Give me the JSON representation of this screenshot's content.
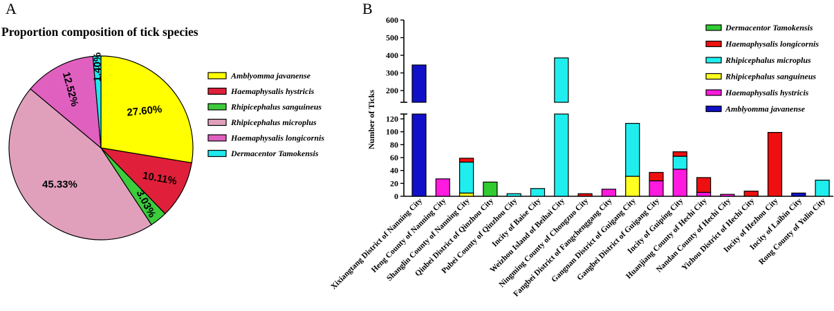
{
  "panels": {
    "a_letter": "A",
    "b_letter": "B"
  },
  "chart_data": [
    {
      "type": "pie",
      "title": "Proportion composition of tick species",
      "slices": [
        {
          "name": "Amblyomma javanense",
          "value": 27.6,
          "label": "27.60%",
          "color": "#ffff00"
        },
        {
          "name": "Haemaphysalis hystricis",
          "value": 10.11,
          "label": "10.11%",
          "color": "#e0203a"
        },
        {
          "name": "Rhipicephalus sanguineus",
          "value": 3.03,
          "label": "3.03%",
          "color": "#3ccc3c"
        },
        {
          "name": "Rhipicephalus microplus",
          "value": 45.33,
          "label": "45.33%",
          "color": "#e0a0bc"
        },
        {
          "name": "Haemaphysalis longicornis",
          "value": 12.52,
          "label": "12.52%",
          "color": "#e060c0"
        },
        {
          "name": "Dermacentor Tamokensis",
          "value": 1.4,
          "label": "1.40%",
          "color": "#20e8ee"
        }
      ]
    },
    {
      "type": "bar",
      "stacked": true,
      "broken_axis": true,
      "ylabel": "Number of Ticks",
      "lower_ticks": [
        0,
        20,
        40,
        60,
        80,
        100,
        120
      ],
      "upper_ticks": [
        200,
        300,
        400,
        500,
        600
      ],
      "ylim_lower": [
        0,
        125
      ],
      "ylim_upper": [
        150,
        600
      ],
      "categories": [
        "Xixiangtang District of Nanning City",
        "Heng County of Nanning City",
        "Shanglin County of Nanning City",
        "Qinbei District of Qinzhou City",
        "Pubei County of Qinzhou City",
        "Incity of Baise City",
        "Weizhou Island of Beihai City",
        "Ningming County of Chongzuo City",
        "Fangbei District of Fangchenggang City",
        "Gangnan District of Guigang City",
        "Gangbei District of Guigang City",
        "Incity of Guiping City",
        "Huanjiang County of Hechi City",
        "Nandan County of Hechi City",
        "Yizhou District of Hechi City",
        "Incity of Hezhou City",
        "Incity of Laibin City",
        "Rong County of Yulin City"
      ],
      "series": [
        {
          "name": "Amblyomma javanense",
          "color": "#1010c8",
          "values": [
            345,
            0,
            0,
            0,
            0,
            0,
            0,
            0,
            0,
            0,
            0,
            0,
            0,
            0,
            0,
            0,
            5,
            0
          ]
        },
        {
          "name": "Haemaphysalis hystricis",
          "color": "#ff1adf",
          "values": [
            0,
            27,
            0,
            0,
            0,
            0,
            0,
            0,
            11,
            0,
            24,
            42,
            6,
            3,
            0,
            0,
            0,
            0
          ]
        },
        {
          "name": "Rhipicephalus sanguineus",
          "color": "#ffff20",
          "values": [
            0,
            0,
            5,
            0,
            0,
            0,
            0,
            0,
            0,
            31,
            0,
            0,
            0,
            0,
            0,
            0,
            0,
            0
          ]
        },
        {
          "name": "Rhipicephalus microplus",
          "color": "#20eeee",
          "values": [
            0,
            0,
            48,
            0,
            4,
            12,
            385,
            0,
            0,
            82,
            0,
            20,
            0,
            0,
            0,
            0,
            0,
            25
          ]
        },
        {
          "name": "Haemaphysalis longicornis",
          "color": "#ee1010",
          "values": [
            0,
            0,
            6,
            0,
            0,
            0,
            0,
            4,
            0,
            0,
            13,
            7,
            23,
            0,
            8,
            99,
            0,
            0
          ]
        },
        {
          "name": "Dermacentor Tamokensis",
          "color": "#30cc30",
          "values": [
            0,
            0,
            0,
            22,
            0,
            0,
            0,
            0,
            0,
            0,
            0,
            0,
            0,
            0,
            0,
            0,
            0,
            0
          ]
        }
      ],
      "legend_order": [
        "Dermacentor Tamokensis",
        "Haemaphysalis longicornis",
        "Rhipicephalus microplus",
        "Rhipicephalus sanguineus",
        "Haemaphysalis hystricis",
        "Amblyomma javanense"
      ],
      "legend_position": "top-right"
    }
  ]
}
